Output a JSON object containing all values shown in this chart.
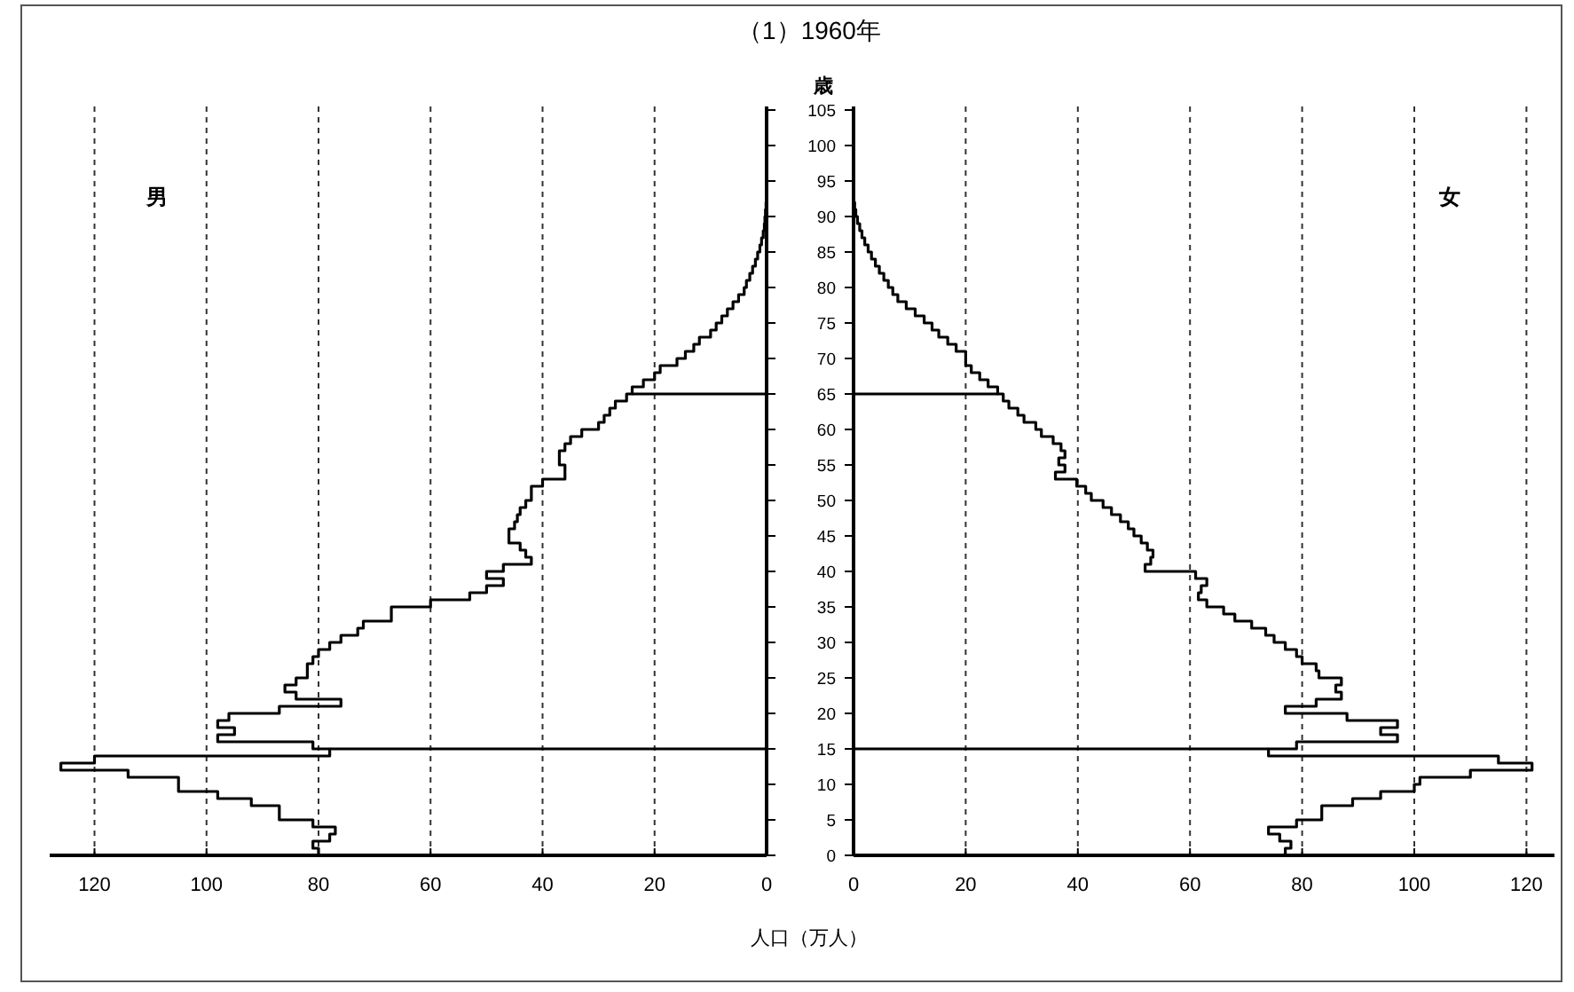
{
  "chart_data": [
    {
      "type": "step",
      "orientation": "horizontal",
      "title": "（1）1960年",
      "xlabel": "人口（万人）",
      "tick_labels": "x",
      "grid": "x",
      "x": [
        0,
        1,
        2,
        3,
        4,
        5,
        6,
        7,
        8,
        9,
        10,
        11,
        12,
        13,
        14,
        15,
        16,
        17,
        18,
        19,
        20,
        21,
        22,
        23,
        24,
        25,
        26,
        27,
        28,
        29,
        30,
        31,
        32,
        33,
        34,
        35,
        36,
        37,
        38,
        39,
        40,
        41,
        42,
        43,
        44,
        45,
        46,
        47,
        48,
        49,
        50,
        51,
        52,
        53,
        54,
        55,
        56,
        57,
        58,
        59,
        60,
        61,
        62,
        63,
        64,
        65,
        66,
        67,
        68,
        69,
        70,
        71,
        72,
        73,
        74,
        75,
        76,
        77,
        78,
        79,
        80,
        81,
        82,
        83,
        84,
        85,
        86,
        87,
        88,
        89,
        90,
        91,
        92
      ],
      "series": [
        {
          "name": "男",
          "color": "#000000",
          "values": [
            80,
            81,
            78,
            77,
            81,
            87,
            87,
            92,
            98,
            105,
            105,
            114,
            126,
            120,
            78,
            81,
            98,
            95,
            98,
            96,
            87,
            76,
            84,
            86,
            84,
            82,
            82,
            81,
            80,
            78,
            76,
            73,
            72,
            67,
            67,
            60,
            53,
            50,
            47,
            50,
            47,
            42,
            43,
            44,
            46,
            46,
            45,
            44.5,
            44,
            43,
            42,
            42,
            40,
            36,
            36,
            37,
            37,
            36,
            35,
            33,
            30,
            29,
            28,
            27,
            25,
            24,
            22,
            20,
            19,
            16,
            14.5,
            13,
            12,
            10,
            9,
            8,
            7,
            6,
            5,
            4,
            3.6,
            3,
            2.5,
            2,
            1.6,
            1.2,
            0.9,
            0.6,
            0.4,
            0.3,
            0.2,
            0.1,
            0
          ]
        }
      ],
      "xlim": [
        128,
        0
      ],
      "xticks": [
        120,
        100,
        80,
        60,
        40,
        20,
        0
      ],
      "ylim": [
        0,
        105.5
      ],
      "yticks": [
        0,
        5,
        10,
        15,
        20,
        25,
        30,
        35,
        40,
        45,
        50,
        55,
        60,
        65,
        70,
        75,
        80,
        85,
        90,
        95,
        100,
        105
      ],
      "ref_lines": [
        {
          "axis": "y",
          "value": 15,
          "color": "#000000"
        },
        {
          "axis": "y",
          "value": 65,
          "color": "#000000"
        }
      ]
    },
    {
      "type": "step",
      "orientation": "horizontal",
      "ylabel": "歳",
      "grid": "x",
      "x": [
        0,
        1,
        2,
        3,
        4,
        5,
        6,
        7,
        8,
        9,
        10,
        11,
        12,
        13,
        14,
        15,
        16,
        17,
        18,
        19,
        20,
        21,
        22,
        23,
        24,
        25,
        26,
        27,
        28,
        29,
        30,
        31,
        32,
        33,
        34,
        35,
        36,
        37,
        38,
        39,
        40,
        41,
        42,
        43,
        44,
        45,
        46,
        47,
        48,
        49,
        50,
        51,
        52,
        53,
        54,
        55,
        56,
        57,
        58,
        59,
        60,
        61,
        62,
        63,
        64,
        65,
        66,
        67,
        68,
        69,
        70,
        71,
        72,
        73,
        74,
        75,
        76,
        77,
        78,
        79,
        80,
        81,
        82,
        83,
        84,
        85,
        86,
        87,
        88,
        89,
        90,
        91,
        92
      ],
      "series": [
        {
          "name": "女",
          "color": "#000000",
          "values": [
            77,
            78,
            76,
            74,
            79,
            83.5,
            83.5,
            89,
            94,
            100,
            101,
            110,
            121,
            115,
            74,
            79,
            97,
            94,
            97,
            88,
            77,
            82.5,
            87,
            86,
            87,
            83,
            82.5,
            80,
            79,
            77,
            75,
            73.5,
            71,
            68,
            66,
            63,
            61.5,
            62,
            63,
            61,
            52,
            53,
            53.4,
            52.4,
            51.3,
            50,
            49,
            47.6,
            46,
            44.5,
            42.4,
            41.4,
            39.8,
            36,
            37.7,
            36.6,
            37.7,
            37,
            35.6,
            33.5,
            32.5,
            30.4,
            29.3,
            27.7,
            26.7,
            25.7,
            24,
            22.5,
            21,
            20,
            20,
            18.3,
            16.8,
            15.2,
            14,
            12.6,
            11,
            9.4,
            7.9,
            7,
            6.2,
            5.4,
            4.6,
            3.9,
            3.2,
            2.6,
            2,
            1.5,
            1.1,
            0.7,
            0.4,
            0.2,
            0
          ]
        }
      ],
      "xlim": [
        0,
        125
      ],
      "xticks": [
        0,
        20,
        40,
        60,
        80,
        100,
        120
      ],
      "ylim": [
        0,
        105.5
      ],
      "yticks": [
        0,
        5,
        10,
        15,
        20,
        25,
        30,
        35,
        40,
        45,
        50,
        55,
        60,
        65,
        70,
        75,
        80,
        85,
        90,
        95,
        100,
        105
      ],
      "ref_lines": [
        {
          "axis": "y",
          "value": 15,
          "color": "#000000"
        },
        {
          "axis": "y",
          "value": 65,
          "color": "#000000"
        }
      ]
    }
  ]
}
